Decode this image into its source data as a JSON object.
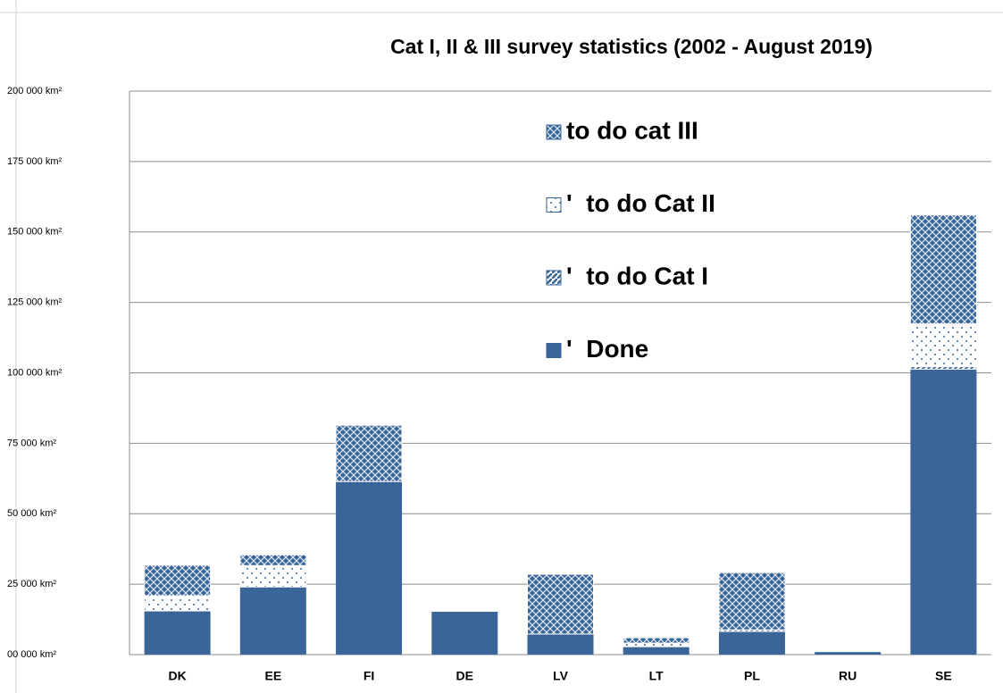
{
  "chart_data": {
    "type": "stacked_bar",
    "title": "Cat I, II & III survey statistics (2002 - August 2019)",
    "categories": [
      "DK",
      "EE",
      "FI",
      "DE",
      "LV",
      "LT",
      "PL",
      "RU",
      "SE"
    ],
    "series": [
      {
        "name": "'  Done",
        "color": "#3a6598",
        "pattern": "solid",
        "values": [
          15500,
          24000,
          61400,
          15200,
          7300,
          2800,
          8200,
          900,
          101300
        ]
      },
      {
        "name": "'  to do Cat I",
        "color": "#3a6598",
        "pattern": "diagonal",
        "values": [
          0,
          0,
          0,
          0,
          0,
          0,
          600,
          0,
          900
        ]
      },
      {
        "name": "'  to do Cat II",
        "color": "#3a6598",
        "pattern": "dots",
        "values": [
          5400,
          7600,
          0,
          0,
          0,
          1300,
          0,
          0,
          15200
        ]
      },
      {
        "name": "to do cat III",
        "color": "#3a6598",
        "pattern": "crosshatch",
        "values": [
          10800,
          3800,
          20000,
          0,
          21200,
          1900,
          20300,
          0,
          38600
        ]
      }
    ],
    "ylim": [
      0,
      200000
    ],
    "yticks": [
      {
        "value": 0,
        "label": "00 000  km²"
      },
      {
        "value": 25000,
        "label": "25 000  km²"
      },
      {
        "value": 50000,
        "label": "50 000  km²"
      },
      {
        "value": 75000,
        "label": "75 000  km²"
      },
      {
        "value": 100000,
        "label": "100 000  km²"
      },
      {
        "value": 125000,
        "label": "125 000  km²"
      },
      {
        "value": 150000,
        "label": "150 000  km²"
      },
      {
        "value": 175000,
        "label": "175 000  km²"
      },
      {
        "value": 200000,
        "label": "200 000  km²"
      }
    ],
    "grid": true,
    "legend": "top-right"
  }
}
